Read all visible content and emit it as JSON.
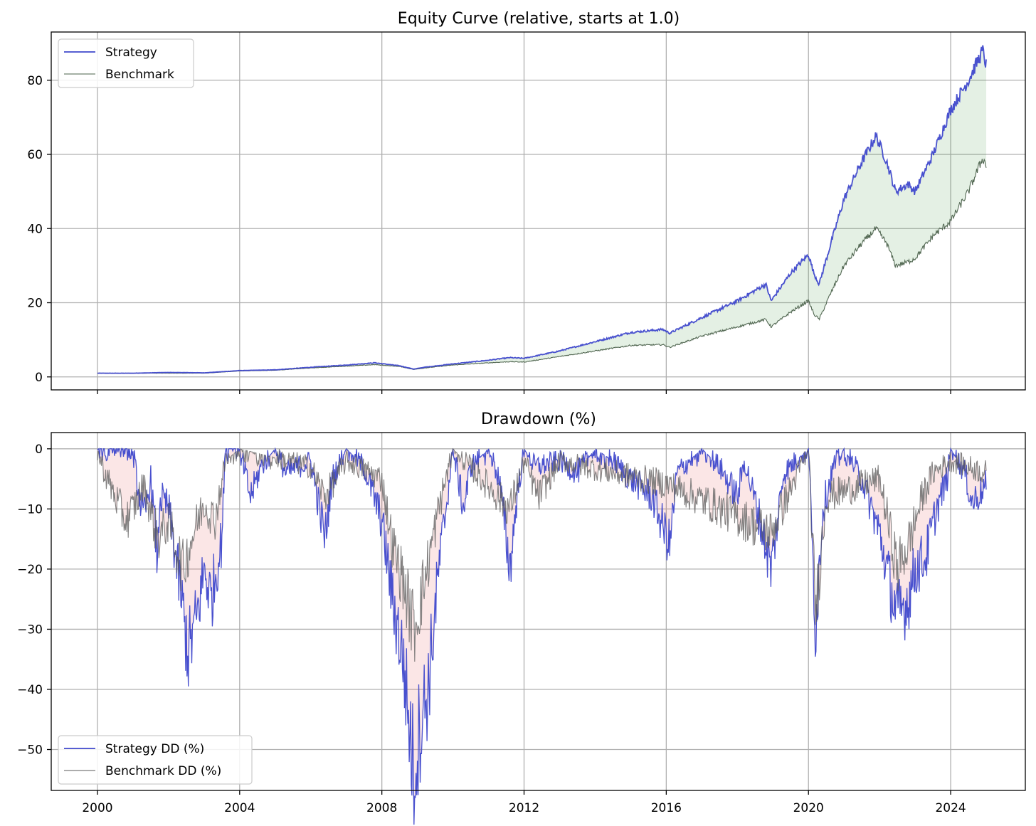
{
  "chart_data": [
    {
      "type": "line",
      "title": "Equity Curve (relative, starts at 1.0)",
      "xlabel": "",
      "ylabel": "",
      "xlim": [
        1998.7,
        2026.1
      ],
      "ylim": [
        -3.5,
        93
      ],
      "x_ticks": [
        2000,
        2004,
        2008,
        2012,
        2016,
        2020,
        2024
      ],
      "y_ticks": [
        0,
        20,
        40,
        60,
        80
      ],
      "y_tick_labels": [
        "0",
        "20",
        "40",
        "60",
        "80"
      ],
      "grid": true,
      "legend_position": "upper left",
      "fill_between": {
        "color": "#2e8b2e",
        "opacity": 0.13
      },
      "series": [
        {
          "name": "Strategy",
          "color": "#3f48cc",
          "x": [
            2000,
            2001,
            2002,
            2003,
            2004,
            2005,
            2006,
            2007,
            2007.8,
            2008.5,
            2008.9,
            2009.2,
            2010,
            2011,
            2011.6,
            2012,
            2013,
            2014,
            2015,
            2015.9,
            2016.1,
            2017,
            2018,
            2018.8,
            2018.95,
            2019.5,
            2020,
            2020.15,
            2020.3,
            2020.6,
            2021,
            2021.5,
            2021.9,
            2022.2,
            2022.45,
            2022.8,
            2023,
            2023.5,
            2024,
            2024.5,
            2024.9,
            2025.0
          ],
          "values": [
            1.0,
            1.0,
            1.2,
            1.1,
            1.7,
            1.9,
            2.6,
            3.2,
            3.8,
            3.0,
            2.1,
            2.6,
            3.5,
            4.5,
            5.2,
            5.0,
            7.0,
            9.5,
            12.0,
            12.8,
            11.8,
            16.0,
            20.5,
            25.0,
            20.5,
            28.0,
            33.0,
            28.0,
            25.0,
            35.0,
            48.0,
            58.0,
            65.0,
            58.0,
            50.0,
            52.0,
            50.0,
            60.0,
            72.0,
            80.0,
            88.0,
            84.0
          ]
        },
        {
          "name": "Benchmark",
          "color": "#4a604a",
          "x": [
            2000,
            2001,
            2002,
            2003,
            2004,
            2005,
            2006,
            2007,
            2007.8,
            2008.5,
            2008.9,
            2009.2,
            2010,
            2011,
            2011.6,
            2012,
            2013,
            2014,
            2015,
            2015.9,
            2016.1,
            2017,
            2018,
            2018.8,
            2018.95,
            2019.5,
            2020,
            2020.15,
            2020.3,
            2020.6,
            2021,
            2021.5,
            2021.9,
            2022.2,
            2022.45,
            2022.8,
            2023,
            2023.5,
            2024,
            2024.5,
            2024.9,
            2025.0
          ],
          "values": [
            1.0,
            1.0,
            1.0,
            1.0,
            1.6,
            1.8,
            2.4,
            2.9,
            3.3,
            2.8,
            2.0,
            2.4,
            3.2,
            3.8,
            4.1,
            4.0,
            5.5,
            7.0,
            8.5,
            8.7,
            8.0,
            11.0,
            13.5,
            15.5,
            13.5,
            17.5,
            20.5,
            17.0,
            15.5,
            22.0,
            30.0,
            36.0,
            40.0,
            36.0,
            30.0,
            31.0,
            32.0,
            38.0,
            42.0,
            50.0,
            59.0,
            57.0
          ]
        }
      ]
    },
    {
      "type": "line",
      "title": "Drawdown (%)",
      "xlabel": "",
      "ylabel": "",
      "xlim": [
        1998.7,
        2026.1
      ],
      "ylim": [
        -56.8,
        2.7
      ],
      "x_ticks": [
        2000,
        2004,
        2008,
        2012,
        2016,
        2020,
        2024
      ],
      "x_tick_labels": [
        "2000",
        "2004",
        "2008",
        "2012",
        "2016",
        "2020",
        "2024"
      ],
      "y_ticks": [
        0,
        -10,
        -20,
        -30,
        -40,
        -50
      ],
      "y_tick_labels": [
        "0",
        "−10",
        "−20",
        "−30",
        "−40",
        "−50"
      ],
      "grid": true,
      "legend_position": "lower left",
      "fill_between": {
        "color": "#e05050",
        "opacity": 0.14
      },
      "series": [
        {
          "name": "Strategy DD (%)",
          "color": "#3f48cc",
          "x": [
            2000,
            2001,
            2001.1,
            2001.3,
            2001.5,
            2001.7,
            2001.75,
            2002,
            2002.3,
            2002.55,
            2002.8,
            2003.0,
            2003.2,
            2003.5,
            2003.6,
            2004,
            2004.3,
            2004.6,
            2005,
            2005.3,
            2006,
            2006.4,
            2006.6,
            2007,
            2007.5,
            2008,
            2008.3,
            2008.6,
            2008.9,
            2009.1,
            2009.3,
            2009.6,
            2010,
            2010.3,
            2010.5,
            2011,
            2011.3,
            2011.6,
            2011.8,
            2012,
            2012.3,
            2013,
            2013.5,
            2014,
            2014.5,
            2015,
            2015.6,
            2016.1,
            2016.3,
            2017,
            2017.5,
            2018,
            2018.2,
            2018.6,
            2018.95,
            2019.3,
            2020,
            2020.2,
            2020.4,
            2020.7,
            2021,
            2021.5,
            2022,
            2022.2,
            2022.5,
            2022.8,
            2023,
            2023.3,
            2023.6,
            2023.9,
            2024,
            2024.4,
            2024.6,
            2025
          ],
          "values": [
            0,
            0,
            -5,
            -12,
            -5,
            -19,
            -8,
            -10,
            -22,
            -34,
            -28,
            -20,
            -25,
            -15,
            0,
            0,
            -8,
            -3,
            0,
            -4,
            -2,
            -15,
            -5,
            0,
            -3,
            -12,
            -25,
            -35,
            -54,
            -45,
            -40,
            -20,
            0,
            -10,
            -3,
            0,
            -5,
            -20,
            -8,
            0,
            -3,
            -2,
            -4,
            0,
            -2,
            -5,
            -8,
            -16,
            -4,
            0,
            -3,
            -8,
            -2,
            -11,
            -20,
            -4,
            0,
            -30,
            -10,
            -3,
            0,
            -5,
            -14,
            -20,
            -28,
            -25,
            -20,
            -18,
            -10,
            -5,
            0,
            -4,
            -9,
            -6
          ]
        },
        {
          "name": "Benchmark DD (%)",
          "color": "#5a5a5a",
          "x": [
            2000,
            2000.2,
            2000.5,
            2000.8,
            2001,
            2001.3,
            2001.7,
            2002,
            2002.4,
            2002.7,
            2003,
            2003.3,
            2003.6,
            2004,
            2006,
            2006.4,
            2007,
            2008,
            2008.3,
            2008.6,
            2008.9,
            2009.2,
            2009.6,
            2010,
            2011.6,
            2012,
            2012.4,
            2013,
            2016.1,
            2018.95,
            2020,
            2020.2,
            2020.5,
            2022,
            2022.5,
            2022.8,
            2023.2,
            2023.5,
            2024,
            2025
          ],
          "values": [
            0,
            -4,
            -8,
            -12,
            -10,
            -6,
            -15,
            -12,
            -20,
            -14,
            -9,
            -12,
            -2,
            0,
            -3,
            -8,
            -2,
            -5,
            -16,
            -22,
            -30,
            -22,
            -10,
            0,
            -10,
            -2,
            -8,
            -2,
            -6,
            -14,
            0,
            -27,
            -8,
            -5,
            -20,
            -16,
            -8,
            -4,
            -2,
            -4
          ]
        }
      ]
    }
  ]
}
